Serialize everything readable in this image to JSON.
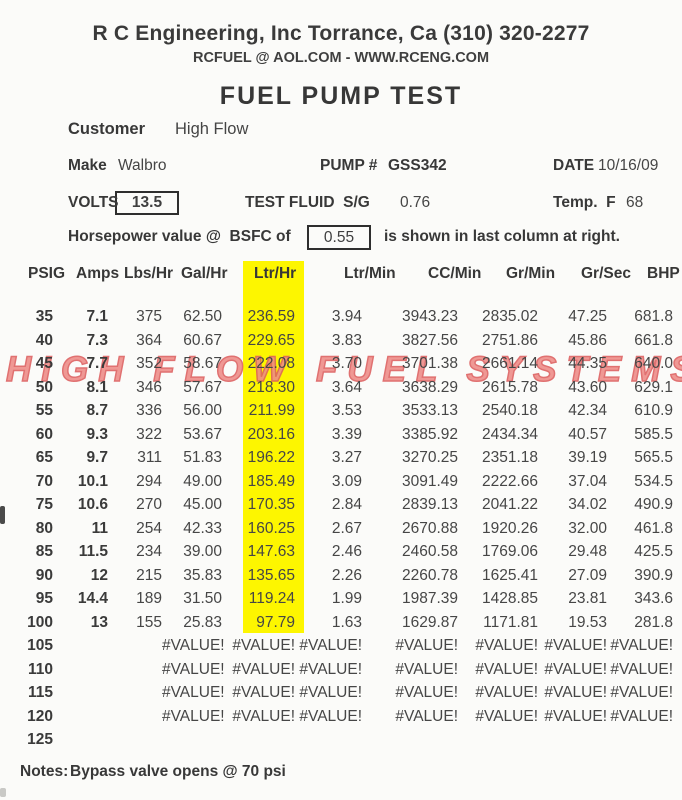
{
  "header": {
    "company_line": "R C Engineering, Inc  Torrance,  Ca  (310) 320-2277",
    "contact_line": "RCFUEL @ AOL.COM -  WWW.RCENG.COM",
    "title": "FUEL PUMP TEST"
  },
  "info": {
    "customer_label": "Customer",
    "customer_value": "High Flow",
    "make_label": "Make",
    "make_value": "Walbro",
    "pump_label": "PUMP #",
    "pump_value": "GSS342",
    "date_label": "DATE",
    "date_value": "10/16/09",
    "volts_label": "VOLTS",
    "volts_value": "13.5",
    "test_fluid_label": "TEST FLUID  S/G",
    "test_fluid_value": "0.76",
    "temp_label": "Temp.  F",
    "temp_value": "68",
    "bsfc_prefix": "Horsepower value @  BSFC of",
    "bsfc_value": "0.55",
    "bsfc_suffix": "is shown in last column at right."
  },
  "watermark_text": "HIGH FLOW FUEL SYSTEMS",
  "colors": {
    "highlight": "#fdf600",
    "watermark_fill": "#ee8b87",
    "watermark_stroke": "#dd5f5f"
  },
  "table": {
    "columns": [
      "PSIG",
      "Amps",
      "Lbs/Hr",
      "Gal/Hr",
      "Ltr/Hr",
      "Ltr/Min",
      "CC/Min",
      "Gr/Min",
      "Gr/Sec",
      "BHP"
    ],
    "highlight_column": "Ltr/Hr",
    "rows": [
      [
        "35",
        "7.1",
        "375",
        "62.50",
        "236.59",
        "3.94",
        "3943.23",
        "2835.02",
        "47.25",
        "681.8"
      ],
      [
        "40",
        "7.3",
        "364",
        "60.67",
        "229.65",
        "3.83",
        "3827.56",
        "2751.86",
        "45.86",
        "661.8"
      ],
      [
        "45",
        "7.7",
        "352",
        "58.67",
        "222.08",
        "3.70",
        "3701.38",
        "2661.14",
        "44.35",
        "640.0"
      ],
      [
        "50",
        "8.1",
        "346",
        "57.67",
        "218.30",
        "3.64",
        "3638.29",
        "2615.78",
        "43.60",
        "629.1"
      ],
      [
        "55",
        "8.7",
        "336",
        "56.00",
        "211.99",
        "3.53",
        "3533.13",
        "2540.18",
        "42.34",
        "610.9"
      ],
      [
        "60",
        "9.3",
        "322",
        "53.67",
        "203.16",
        "3.39",
        "3385.92",
        "2434.34",
        "40.57",
        "585.5"
      ],
      [
        "65",
        "9.7",
        "311",
        "51.83",
        "196.22",
        "3.27",
        "3270.25",
        "2351.18",
        "39.19",
        "565.5"
      ],
      [
        "70",
        "10.1",
        "294",
        "49.00",
        "185.49",
        "3.09",
        "3091.49",
        "2222.66",
        "37.04",
        "534.5"
      ],
      [
        "75",
        "10.6",
        "270",
        "45.00",
        "170.35",
        "2.84",
        "2839.13",
        "2041.22",
        "34.02",
        "490.9"
      ],
      [
        "80",
        "11",
        "254",
        "42.33",
        "160.25",
        "2.67",
        "2670.88",
        "1920.26",
        "32.00",
        "461.8"
      ],
      [
        "85",
        "11.5",
        "234",
        "39.00",
        "147.63",
        "2.46",
        "2460.58",
        "1769.06",
        "29.48",
        "425.5"
      ],
      [
        "90",
        "12",
        "215",
        "35.83",
        "135.65",
        "2.26",
        "2260.78",
        "1625.41",
        "27.09",
        "390.9"
      ],
      [
        "95",
        "14.4",
        "189",
        "31.50",
        "119.24",
        "1.99",
        "1987.39",
        "1428.85",
        "23.81",
        "343.6"
      ],
      [
        "100",
        "13",
        "155",
        "25.83",
        "97.79",
        "1.63",
        "1629.87",
        "1171.81",
        "19.53",
        "281.8"
      ],
      [
        "105",
        "",
        "",
        "#VALUE!",
        "#VALUE!",
        "#VALUE!",
        "#VALUE!",
        "#VALUE!",
        "#VALUE!",
        "#VALUE!"
      ],
      [
        "110",
        "",
        "",
        "#VALUE!",
        "#VALUE!",
        "#VALUE!",
        "#VALUE!",
        "#VALUE!",
        "#VALUE!",
        "#VALUE!"
      ],
      [
        "115",
        "",
        "",
        "#VALUE!",
        "#VALUE!",
        "#VALUE!",
        "#VALUE!",
        "#VALUE!",
        "#VALUE!",
        "#VALUE!"
      ],
      [
        "120",
        "",
        "",
        "#VALUE!",
        "#VALUE!",
        "#VALUE!",
        "#VALUE!",
        "#VALUE!",
        "#VALUE!",
        "#VALUE!"
      ],
      [
        "125",
        "",
        "",
        "",
        "",
        "",
        "",
        "",
        "",
        ""
      ]
    ]
  },
  "notes": {
    "label": "Notes:",
    "value": "Bypass valve opens @ 70 psi"
  }
}
